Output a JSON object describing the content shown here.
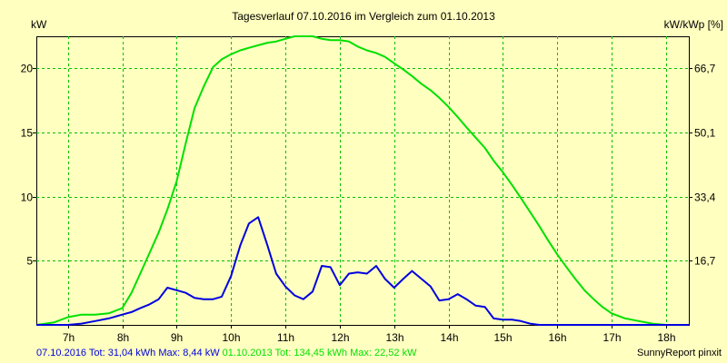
{
  "chart_data": {
    "type": "line",
    "title": "Tagesverlauf 07.10.2016 im Vergleich zum 01.10.2013",
    "ylabel": "kW",
    "ylabel_right": "kW/kWp [%]",
    "xlabel": "",
    "xlim": [
      6.42,
      18.42
    ],
    "ylim": [
      0,
      22.5
    ],
    "x_ticks": [
      7,
      8,
      9,
      10,
      11,
      12,
      13,
      14,
      15,
      16,
      17,
      18
    ],
    "x_tick_labels": [
      "7h",
      "8h",
      "9h",
      "10h",
      "11h",
      "12h",
      "13h",
      "14h",
      "15h",
      "16h",
      "17h",
      "18h"
    ],
    "y_ticks": [
      5,
      10,
      15,
      20
    ],
    "y_tick_labels": [
      "5",
      "10",
      "15",
      "20"
    ],
    "y2_ticks": [
      5,
      10,
      15,
      20
    ],
    "y2_tick_labels": [
      "16,7",
      "33,4",
      "50,1",
      "66,7"
    ],
    "grid": true,
    "legend": "none",
    "series": [
      {
        "name": "01.10.2013",
        "color": "#00e000",
        "x": [
          6.42,
          6.75,
          7.0,
          7.25,
          7.5,
          7.75,
          8.0,
          8.17,
          8.33,
          8.5,
          8.67,
          8.83,
          9.0,
          9.17,
          9.33,
          9.5,
          9.67,
          9.83,
          10.0,
          10.17,
          10.33,
          10.5,
          10.67,
          10.83,
          11.0,
          11.17,
          11.33,
          11.5,
          11.67,
          11.83,
          12.0,
          12.17,
          12.33,
          12.5,
          12.67,
          12.83,
          13.0,
          13.17,
          13.33,
          13.5,
          13.67,
          13.83,
          14.0,
          14.17,
          14.33,
          14.5,
          14.67,
          14.83,
          15.0,
          15.17,
          15.33,
          15.5,
          15.67,
          15.83,
          16.0,
          16.17,
          16.33,
          16.5,
          16.67,
          16.83,
          17.0,
          17.25,
          17.5,
          17.75,
          18.0,
          18.17,
          18.42
        ],
        "y": [
          0,
          0.2,
          0.6,
          0.8,
          0.8,
          0.9,
          1.3,
          2.5,
          4.0,
          5.6,
          7.2,
          9.0,
          11.2,
          14.2,
          16.9,
          18.6,
          20.1,
          20.7,
          21.1,
          21.4,
          21.6,
          21.8,
          22.0,
          22.1,
          22.3,
          22.5,
          22.5,
          22.5,
          22.3,
          22.2,
          22.2,
          22.1,
          21.7,
          21.4,
          21.2,
          20.9,
          20.4,
          19.9,
          19.4,
          18.8,
          18.3,
          17.7,
          17.0,
          16.2,
          15.4,
          14.6,
          13.8,
          12.8,
          11.9,
          10.9,
          9.9,
          8.8,
          7.7,
          6.6,
          5.5,
          4.5,
          3.6,
          2.7,
          2.0,
          1.4,
          0.9,
          0.5,
          0.3,
          0.1,
          0.0,
          0.0,
          0.0
        ]
      },
      {
        "name": "07.10.2016",
        "color": "#0000e0",
        "x": [
          6.42,
          7.0,
          7.25,
          7.5,
          7.75,
          8.0,
          8.17,
          8.33,
          8.5,
          8.67,
          8.83,
          9.0,
          9.17,
          9.33,
          9.5,
          9.67,
          9.83,
          10.0,
          10.17,
          10.33,
          10.5,
          10.67,
          10.83,
          11.0,
          11.17,
          11.33,
          11.5,
          11.67,
          11.83,
          12.0,
          12.17,
          12.33,
          12.5,
          12.67,
          12.83,
          13.0,
          13.17,
          13.33,
          13.5,
          13.67,
          13.83,
          14.0,
          14.17,
          14.33,
          14.5,
          14.67,
          14.83,
          15.0,
          15.17,
          15.33,
          15.5,
          15.67,
          15.83,
          16.0,
          16.17,
          16.33,
          16.5,
          16.67,
          16.83,
          17.0,
          17.25,
          17.5,
          17.75,
          18.0,
          18.17,
          18.42
        ],
        "y": [
          0,
          0,
          0.1,
          0.3,
          0.5,
          0.8,
          1.0,
          1.3,
          1.6,
          2.0,
          2.9,
          2.7,
          2.5,
          2.1,
          2.0,
          2.0,
          2.2,
          3.8,
          6.2,
          7.9,
          8.4,
          6.2,
          4.0,
          3.0,
          2.3,
          2.0,
          2.6,
          4.6,
          4.5,
          3.1,
          4.0,
          4.1,
          4.0,
          4.6,
          3.6,
          2.9,
          3.6,
          4.2,
          3.6,
          3.0,
          1.9,
          2.0,
          2.4,
          2.0,
          1.5,
          1.4,
          0.5,
          0.4,
          0.4,
          0.3,
          0.1,
          0.0,
          0.0,
          0.0,
          0.0,
          0.0,
          0.0,
          0.0,
          0.0,
          0.0,
          0.0,
          0.0,
          0.0,
          0.0,
          0.0,
          0.0
        ],
        "note_ignored": ""
      }
    ]
  },
  "footer": {
    "series_2016_summary": "07.10.2016 Tot: 31,04 kWh Max: 8,44 kW",
    "series_2013_summary": "01.10.2013 Tot: 134,45 kWh Max: 22,52 kW",
    "credit": "SunnyReport pinxit",
    "color_2016": "#0000e0",
    "color_2013": "#00e000"
  }
}
